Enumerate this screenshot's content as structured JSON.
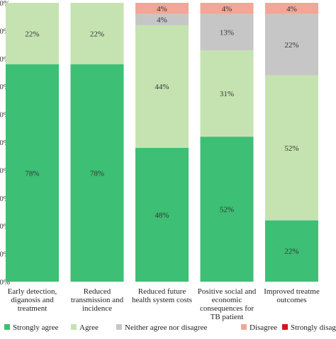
{
  "chart_data": {
    "type": "bar",
    "stacked": true,
    "orientation": "vertical",
    "categories": [
      [
        "Early detection,",
        "diganosis and",
        "treatment"
      ],
      [
        "Reduced",
        "transmission and",
        "incidence"
      ],
      [
        "Reduced future",
        "health system costs"
      ],
      [
        "Positive social and",
        "economic",
        "consequences for",
        "TB patient"
      ],
      [
        "Improved treatme",
        "outcomes"
      ]
    ],
    "series": [
      {
        "name": "Strongly agree",
        "color": "#3dbf75",
        "values": [
          78,
          78,
          48,
          52,
          22
        ]
      },
      {
        "name": "Agree",
        "color": "#c5e3b0",
        "values": [
          22,
          22,
          44,
          31,
          52
        ]
      },
      {
        "name": "Neither agree nor disagree",
        "color": "#c6c6c6",
        "values": [
          0,
          0,
          4,
          13,
          22
        ]
      },
      {
        "name": "Disagree",
        "color": "#f2a698",
        "values": [
          0,
          0,
          4,
          4,
          4
        ]
      },
      {
        "name": "Strongly disagre",
        "color": "#d6121c",
        "values": [
          0,
          0,
          0,
          0,
          0
        ]
      }
    ],
    "segment_labels": [
      [
        "78%",
        "22%",
        "",
        "",
        ""
      ],
      [
        "78%",
        "22%",
        "",
        "",
        ""
      ],
      [
        "48%",
        "44%",
        "4%",
        "4%",
        ""
      ],
      [
        "52%",
        "31%",
        "13%",
        "4%",
        ""
      ],
      [
        "22%",
        "52%",
        "22%",
        "4%",
        ""
      ]
    ],
    "y_tick_labels": [
      "0%",
      "0%",
      "0%",
      "0%",
      "0%",
      "0%",
      "0%",
      "0%",
      "0%",
      "0%",
      "0%"
    ],
    "ylim": [
      0,
      100
    ],
    "legend_position": "bottom",
    "grid": false
  }
}
